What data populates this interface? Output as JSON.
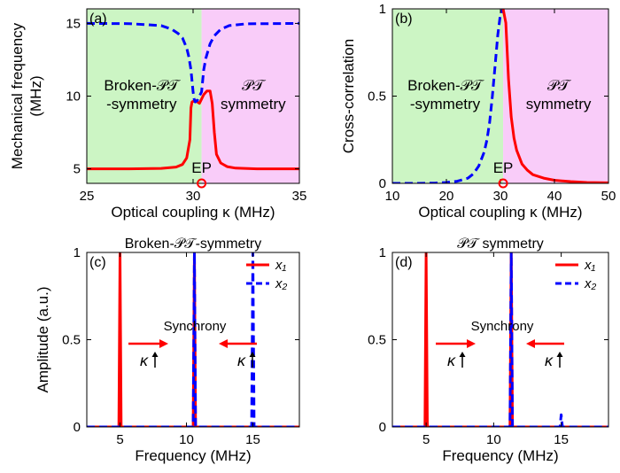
{
  "chart_data": [
    {
      "type": "line",
      "panel": "(a)",
      "xlabel": "Optical coupling κ (MHz)",
      "ylabel": "Mechanical frequency (MHz)",
      "xlim": [
        25,
        35
      ],
      "ylim": [
        4,
        16
      ],
      "xticks": [
        "25",
        "30",
        "35"
      ],
      "yticks": [
        "5",
        "10",
        "15"
      ],
      "regions": [
        {
          "label": [
            "Broken-𝒫𝒯",
            "-symmetry"
          ],
          "x": [
            25,
            30.4
          ],
          "color": "#ccf5c4"
        },
        {
          "label": [
            "𝒫𝒯",
            "symmetry"
          ],
          "x": [
            30.4,
            35
          ],
          "color": "#f9ccf9"
        }
      ],
      "ep": {
        "label": "EP",
        "x": 30.4
      },
      "series": [
        {
          "color": "#ff0000",
          "style": "solid",
          "x": [
            25,
            27,
            28.5,
            29.2,
            29.5,
            29.7,
            29.85,
            29.9,
            29.95,
            30.1,
            30.3,
            30.5,
            30.65,
            30.8,
            30.9,
            31.0,
            31.1,
            31.3,
            31.6,
            32,
            33,
            35
          ],
          "y": [
            5,
            5,
            5.03,
            5.12,
            5.3,
            5.75,
            7,
            9.2,
            9.6,
            9.7,
            9.5,
            10.1,
            10.35,
            10.35,
            9.5,
            7.5,
            6,
            5.4,
            5.15,
            5.05,
            5,
            5
          ]
        },
        {
          "color": "#0000ff",
          "style": "dashed",
          "x": [
            25,
            27,
            28.5,
            29,
            29.3,
            29.5,
            29.7,
            29.8,
            29.9,
            30.0,
            30.05,
            30.1,
            30.2,
            30.4,
            30.5,
            30.6,
            30.8,
            31.0,
            31.3,
            31.7,
            32.5,
            35
          ],
          "y": [
            15,
            14.98,
            14.85,
            14.6,
            14.3,
            14,
            13.3,
            12.7,
            11.8,
            10.3,
            9.8,
            9.6,
            9.7,
            10.3,
            11.8,
            12.6,
            13.6,
            14.15,
            14.6,
            14.85,
            14.97,
            15
          ]
        }
      ]
    },
    {
      "type": "line",
      "panel": "(b)",
      "xlabel": "Optical coupling κ (MHz)",
      "ylabel": "Cross-correlation",
      "xlim": [
        10,
        50
      ],
      "ylim": [
        0,
        1
      ],
      "xticks": [
        "10",
        "20",
        "30",
        "40",
        "50"
      ],
      "yticks": [
        "0",
        "0.5",
        "1"
      ],
      "regions": [
        {
          "label": [
            "Broken-𝒫𝒯",
            "-symmetry"
          ],
          "x": [
            10,
            30.5
          ],
          "color": "#ccf5c4"
        },
        {
          "label": [
            "𝒫𝒯",
            "symmetry"
          ],
          "x": [
            30.5,
            50
          ],
          "color": "#f9ccf9"
        }
      ],
      "ep": {
        "label": "EP",
        "x": 30.5
      },
      "series": [
        {
          "color": "#0000ff",
          "style": "dashed",
          "x": [
            10,
            15,
            18,
            20,
            22,
            24,
            25,
            26,
            27,
            27.5,
            28,
            28.5,
            29,
            29.5,
            30,
            30.5
          ],
          "y": [
            0,
            0,
            0.002,
            0.005,
            0.012,
            0.03,
            0.055,
            0.1,
            0.18,
            0.25,
            0.35,
            0.5,
            0.67,
            0.85,
            0.97,
            1.0
          ]
        },
        {
          "color": "#ff0000",
          "style": "solid",
          "x": [
            30.5,
            31,
            31.5,
            32,
            32.5,
            33,
            34,
            35,
            36,
            38,
            40,
            43,
            46,
            50
          ],
          "y": [
            1.0,
            0.92,
            0.6,
            0.38,
            0.26,
            0.19,
            0.11,
            0.075,
            0.05,
            0.03,
            0.018,
            0.01,
            0.005,
            0.003
          ]
        }
      ]
    },
    {
      "type": "line",
      "panel": "(c)",
      "title": "Broken-𝒫𝒯-symmetry",
      "xlabel": "Frequency (MHz)",
      "ylabel": "Amplitude (a.u.)",
      "xlim": [
        2.5,
        18.5
      ],
      "ylim": [
        0,
        1
      ],
      "xticks": [
        "5",
        "10",
        "15"
      ],
      "yticks": [
        "0",
        "0.5",
        "1"
      ],
      "annotation": "Synchrony",
      "kappa": "κ",
      "legend": [
        "x₁",
        "x₂"
      ],
      "series": [
        {
          "name": "x₁",
          "color": "#ff0000",
          "style": "solid",
          "peaks": [
            {
              "x": 5.0,
              "h": 1.0,
              "w": 0.09
            },
            {
              "x": 10.6,
              "h": 1.0,
              "w": 0.09
            }
          ]
        },
        {
          "name": "x₂",
          "color": "#0000ff",
          "style": "dashed",
          "peaks": [
            {
              "x": 10.6,
              "h": 1.0,
              "w": 0.09
            },
            {
              "x": 15.0,
              "h": 1.0,
              "w": 0.09
            }
          ]
        }
      ]
    },
    {
      "type": "line",
      "panel": "(d)",
      "title": "𝒫𝒯 symmetry",
      "xlabel": "Frequency (MHz)",
      "ylabel": "",
      "xlim": [
        2.5,
        18.5
      ],
      "ylim": [
        0,
        1
      ],
      "xticks": [
        "5",
        "10",
        "15"
      ],
      "yticks": [
        "0",
        "0.5",
        "1"
      ],
      "annotation": "Synchrony",
      "kappa": "κ",
      "legend": [
        "x₁",
        "x₂"
      ],
      "series": [
        {
          "name": "x₁",
          "color": "#ff0000",
          "style": "solid",
          "peaks": [
            {
              "x": 5.0,
              "h": 1.0,
              "w": 0.09
            },
            {
              "x": 11.3,
              "h": 1.0,
              "w": 0.09
            }
          ]
        },
        {
          "name": "x₂",
          "color": "#0000ff",
          "style": "dashed",
          "peaks": [
            {
              "x": 11.3,
              "h": 1.0,
              "w": 0.09
            },
            {
              "x": 15.0,
              "h": 0.07,
              "w": 0.09
            }
          ]
        }
      ]
    }
  ]
}
